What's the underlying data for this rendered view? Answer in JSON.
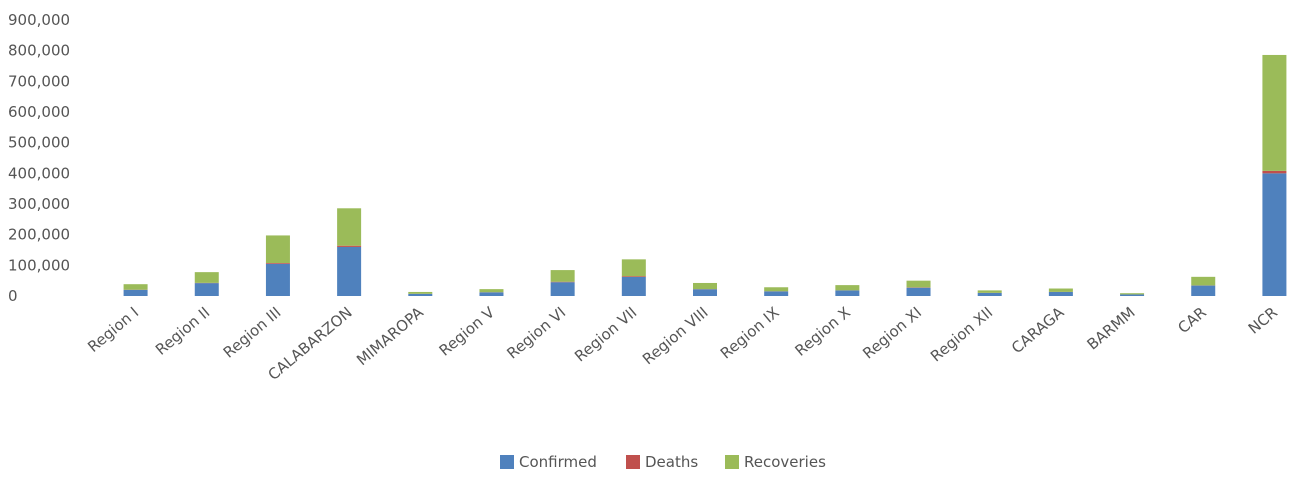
{
  "chart_data": {
    "type": "bar",
    "stacked": true,
    "title": "",
    "xlabel": "",
    "ylabel": "",
    "ylim": [
      0,
      900000
    ],
    "yticks": [
      0,
      100000,
      200000,
      300000,
      400000,
      500000,
      600000,
      700000,
      800000,
      900000
    ],
    "ytick_labels": [
      "0",
      "100,000",
      "200,000",
      "300,000",
      "400,000",
      "500,000",
      "600,000",
      "700,000",
      "800,000",
      "900,000"
    ],
    "grid": false,
    "legend_position": "bottom-center",
    "categories": [
      "Region I",
      "Region II",
      "Region III",
      "CALABARZON",
      "MIMAROPA",
      "Region V",
      "Region VI",
      "Region VII",
      "Region VIII",
      "Region IX",
      "Region X",
      "Region XI",
      "Region XII",
      "CARAGA",
      "BARMM",
      "CAR",
      "NCR"
    ],
    "series": [
      {
        "name": "Confirmed",
        "color": "#4f81bd",
        "values": [
          20000,
          42000,
          105000,
          160000,
          7000,
          12000,
          45000,
          62000,
          22000,
          15000,
          18000,
          27000,
          10000,
          13000,
          5000,
          34000,
          400000
        ]
      },
      {
        "name": "Deaths",
        "color": "#c0504d",
        "values": [
          500,
          800,
          2500,
          4000,
          200,
          400,
          1500,
          2500,
          500,
          500,
          500,
          1000,
          300,
          400,
          100,
          500,
          8000
        ]
      },
      {
        "name": "Recoveries",
        "color": "#9bbb59",
        "values": [
          18000,
          35000,
          90000,
          122000,
          6000,
          10000,
          38000,
          55000,
          20000,
          13000,
          17000,
          22000,
          8000,
          11000,
          4000,
          28000,
          378000
        ]
      }
    ]
  }
}
